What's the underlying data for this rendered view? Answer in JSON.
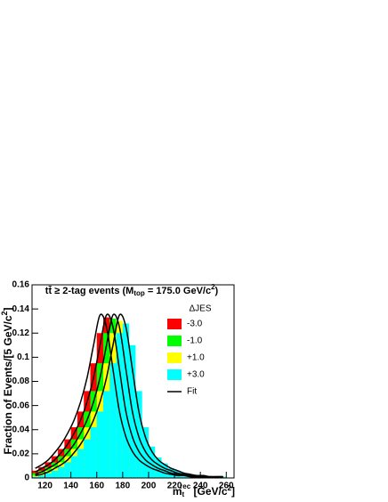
{
  "chart_data": {
    "type": "histogram",
    "title": [
      "tt̄ ≥ 2-tag events (M",
      "top",
      " = 175.0 GeV/c",
      "2",
      ")"
    ],
    "x_label": [
      "m",
      "t",
      "rec",
      " [GeV/c",
      "2",
      "]"
    ],
    "y_label": [
      "Fraction of Events/[5 GeV/c",
      "2",
      "]"
    ],
    "legend_title": "ΔJES",
    "legend": "top-right",
    "bins": [
      110,
      115,
      120,
      125,
      130,
      135,
      140,
      145,
      150,
      155,
      160,
      165,
      170,
      175,
      180,
      185,
      190,
      195,
      200,
      205,
      210,
      215,
      220,
      225,
      230,
      235,
      240,
      245,
      250,
      255,
      260
    ],
    "series": [
      {
        "name": "-3.0",
        "color": "#ff0000",
        "values": [
          0.006,
          0.009,
          0.013,
          0.018,
          0.024,
          0.032,
          0.042,
          0.055,
          0.072,
          0.095,
          0.12,
          0.133,
          0.11,
          0.072,
          0.042,
          0.026,
          0.017,
          0.012,
          0.008,
          0.006,
          0.004,
          0.003,
          0.002,
          0.002,
          0.001,
          0.001,
          0.001,
          0.001,
          0.001,
          0.001
        ]
      },
      {
        "name": "-1.0",
        "color": "#00ff00",
        "values": [
          0.004,
          0.006,
          0.009,
          0.013,
          0.018,
          0.024,
          0.032,
          0.042,
          0.055,
          0.072,
          0.095,
          0.12,
          0.132,
          0.11,
          0.072,
          0.042,
          0.026,
          0.017,
          0.012,
          0.008,
          0.006,
          0.004,
          0.003,
          0.002,
          0.002,
          0.001,
          0.001,
          0.001,
          0.001,
          0.001
        ]
      },
      {
        "name": "+1.0",
        "color": "#ffff00",
        "values": [
          0.002,
          0.004,
          0.006,
          0.009,
          0.013,
          0.018,
          0.024,
          0.032,
          0.042,
          0.055,
          0.072,
          0.095,
          0.12,
          0.13,
          0.11,
          0.072,
          0.042,
          0.026,
          0.017,
          0.012,
          0.008,
          0.006,
          0.004,
          0.003,
          0.002,
          0.002,
          0.001,
          0.001,
          0.001,
          0.001
        ]
      },
      {
        "name": "+3.0",
        "color": "#00ffff",
        "values": [
          0.001,
          0.002,
          0.004,
          0.006,
          0.009,
          0.013,
          0.018,
          0.024,
          0.032,
          0.042,
          0.055,
          0.072,
          0.095,
          0.12,
          0.128,
          0.11,
          0.072,
          0.042,
          0.026,
          0.017,
          0.012,
          0.008,
          0.006,
          0.004,
          0.003,
          0.002,
          0.002,
          0.001,
          0.001,
          0.001
        ]
      }
    ],
    "fit": {
      "name": "Fit",
      "color": "#000000",
      "curves": [
        [
          0.008,
          0.011,
          0.015,
          0.021,
          0.028,
          0.037,
          0.048,
          0.063,
          0.083,
          0.11,
          0.135,
          0.125,
          0.09,
          0.055,
          0.034,
          0.022,
          0.015,
          0.011,
          0.008,
          0.006,
          0.004,
          0.003,
          0.002,
          0.002,
          0.001,
          0.001,
          0.001,
          0.001,
          0.001,
          0.001
        ],
        [
          0.005,
          0.008,
          0.011,
          0.015,
          0.021,
          0.028,
          0.037,
          0.048,
          0.063,
          0.083,
          0.11,
          0.135,
          0.125,
          0.09,
          0.055,
          0.034,
          0.022,
          0.015,
          0.011,
          0.008,
          0.006,
          0.004,
          0.003,
          0.002,
          0.002,
          0.001,
          0.001,
          0.001,
          0.001,
          0.001
        ],
        [
          0.003,
          0.005,
          0.008,
          0.011,
          0.015,
          0.021,
          0.028,
          0.037,
          0.048,
          0.063,
          0.083,
          0.11,
          0.135,
          0.125,
          0.09,
          0.055,
          0.034,
          0.022,
          0.015,
          0.011,
          0.008,
          0.006,
          0.004,
          0.003,
          0.002,
          0.002,
          0.001,
          0.001,
          0.001,
          0.001
        ],
        [
          0.002,
          0.003,
          0.005,
          0.008,
          0.011,
          0.015,
          0.021,
          0.028,
          0.037,
          0.048,
          0.063,
          0.083,
          0.11,
          0.135,
          0.125,
          0.09,
          0.055,
          0.034,
          0.022,
          0.015,
          0.011,
          0.008,
          0.006,
          0.004,
          0.003,
          0.002,
          0.002,
          0.001,
          0.001,
          0.001
        ]
      ]
    },
    "xlim": [
      110,
      266
    ],
    "ylim": [
      0,
      0.16
    ],
    "xticks": [
      120,
      140,
      160,
      180,
      200,
      220,
      240,
      260
    ],
    "yticks": [
      0,
      0.02,
      0.04,
      0.06,
      0.08,
      0.1,
      0.12,
      0.14,
      0.16
    ]
  }
}
